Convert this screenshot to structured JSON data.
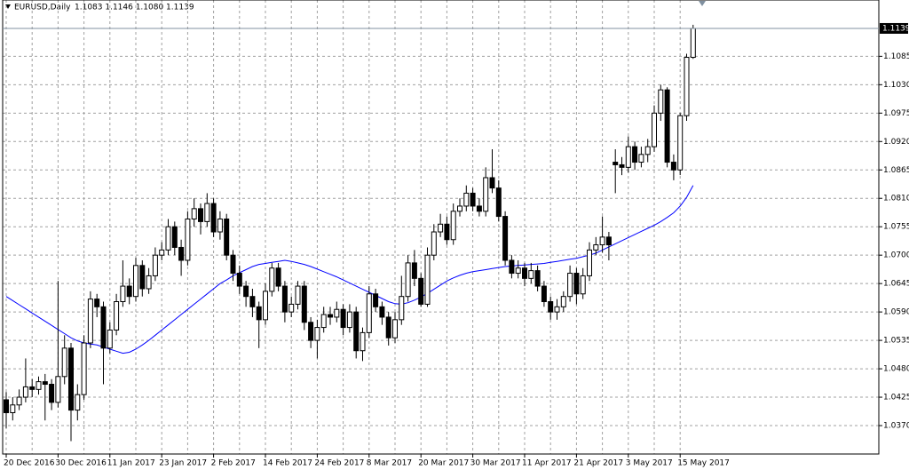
{
  "chart_data": {
    "type": "candlestick",
    "title": "EURUSD,Daily",
    "subtitle": "1.1083 1.1146 1.1080 1.1139",
    "categories": [
      "20 Dec 2016",
      null,
      null,
      null,
      null,
      null,
      null,
      null,
      "30 Dec 2016",
      null,
      null,
      null,
      null,
      null,
      null,
      null,
      "11 Jan 2017",
      null,
      null,
      null,
      null,
      null,
      null,
      null,
      "23 Jan 2017",
      null,
      null,
      null,
      null,
      null,
      null,
      null,
      "2 Feb 2017",
      null,
      null,
      null,
      null,
      null,
      null,
      null,
      "14 Feb 2017",
      null,
      null,
      null,
      null,
      null,
      null,
      null,
      "24 Feb 2017",
      null,
      null,
      null,
      null,
      null,
      null,
      null,
      "8 Mar 2017",
      null,
      null,
      null,
      null,
      null,
      null,
      null,
      "20 Mar 2017",
      null,
      null,
      null,
      null,
      null,
      null,
      null,
      "30 Mar 2017",
      null,
      null,
      null,
      null,
      null,
      null,
      null,
      "11 Apr 2017",
      null,
      null,
      null,
      null,
      null,
      null,
      null,
      "21 Apr 2017",
      null,
      null,
      null,
      null,
      null,
      null,
      null,
      "3 May 2017",
      null,
      null,
      null,
      null,
      null,
      null,
      null,
      "15 May 2017",
      null,
      null
    ],
    "open": [
      1.042,
      1.0395,
      1.041,
      1.0425,
      1.0445,
      1.044,
      1.0455,
      1.045,
      1.0415,
      1.0465,
      1.052,
      1.04,
      1.043,
      1.053,
      1.0615,
      1.06,
      1.052,
      1.0555,
      1.061,
      1.064,
      1.062,
      1.068,
      1.0635,
      1.066,
      1.07,
      1.071,
      1.0755,
      1.0715,
      1.069,
      1.077,
      1.079,
      1.0765,
      1.08,
      1.0745,
      1.077,
      1.07,
      1.0665,
      1.064,
      1.062,
      1.06,
      1.0575,
      1.063,
      1.0675,
      1.064,
      1.059,
      1.0605,
      1.064,
      1.057,
      1.0535,
      1.056,
      1.0585,
      1.058,
      1.0595,
      1.056,
      1.059,
      1.0515,
      1.055,
      1.0625,
      1.06,
      1.058,
      1.054,
      1.0575,
      1.062,
      1.0685,
      1.0655,
      1.0605,
      1.07,
      1.0745,
      1.076,
      1.073,
      1.0785,
      1.0795,
      1.082,
      1.0795,
      1.0785,
      1.085,
      1.083,
      1.0775,
      1.069,
      1.0665,
      1.0675,
      1.0655,
      1.067,
      1.064,
      1.061,
      1.059,
      1.06,
      1.062,
      1.0665,
      1.0625,
      1.066,
      1.071,
      1.072,
      1.0735,
      1.088,
      1.0875,
      1.087,
      1.091,
      1.088,
      1.0895,
      1.091,
      1.0975,
      1.102,
      1.088,
      1.0865,
      1.097,
      1.1083
    ],
    "high": [
      1.0435,
      1.0425,
      1.044,
      1.05,
      1.046,
      1.0465,
      1.047,
      1.046,
      1.065,
      1.0545,
      1.053,
      1.045,
      1.0545,
      1.063,
      1.0625,
      1.061,
      1.057,
      1.0625,
      1.069,
      1.0655,
      1.0695,
      1.069,
      1.0675,
      1.0715,
      1.0725,
      1.077,
      1.0765,
      1.073,
      1.0785,
      1.081,
      1.08,
      1.082,
      1.081,
      1.0785,
      1.078,
      1.071,
      1.068,
      1.065,
      1.0635,
      1.061,
      1.0645,
      1.0685,
      1.0685,
      1.065,
      1.062,
      1.065,
      1.065,
      1.058,
      1.0575,
      1.06,
      1.06,
      1.061,
      1.0605,
      1.0605,
      1.06,
      1.056,
      1.064,
      1.0635,
      1.061,
      1.059,
      1.059,
      1.066,
      1.07,
      1.071,
      1.0665,
      1.0715,
      1.076,
      1.078,
      1.0775,
      1.08,
      1.081,
      1.0835,
      1.083,
      1.081,
      1.087,
      1.0905,
      1.0845,
      1.0785,
      1.07,
      1.069,
      1.0685,
      1.0685,
      1.068,
      1.065,
      1.062,
      1.0615,
      1.063,
      1.068,
      1.0675,
      1.0675,
      1.0725,
      1.0735,
      1.0775,
      1.0745,
      1.0905,
      1.089,
      1.093,
      1.092,
      1.091,
      1.0925,
      1.099,
      1.103,
      1.1025,
      1.0895,
      1.0975,
      1.109,
      1.1146
    ],
    "low": [
      1.0365,
      1.038,
      1.04,
      1.0415,
      1.0425,
      1.043,
      1.038,
      1.04,
      1.0405,
      1.045,
      1.034,
      1.038,
      1.042,
      1.052,
      1.058,
      1.045,
      1.051,
      1.0545,
      1.06,
      1.0605,
      1.061,
      1.062,
      1.0625,
      1.065,
      1.069,
      1.07,
      1.07,
      1.066,
      1.068,
      1.0755,
      1.074,
      1.0755,
      1.0735,
      1.073,
      1.069,
      1.065,
      1.0625,
      1.06,
      1.058,
      1.052,
      1.0565,
      1.062,
      1.063,
      1.057,
      1.058,
      1.0595,
      1.0555,
      1.052,
      1.05,
      1.055,
      1.0565,
      1.057,
      1.0545,
      1.055,
      1.05,
      1.0495,
      1.054,
      1.059,
      1.0565,
      1.0525,
      1.053,
      1.0565,
      1.061,
      1.064,
      1.06,
      1.06,
      1.069,
      1.0735,
      1.072,
      1.072,
      1.0775,
      1.0785,
      1.0785,
      1.0775,
      1.0775,
      1.082,
      1.0765,
      1.068,
      1.0655,
      1.0655,
      1.064,
      1.0645,
      1.063,
      1.06,
      1.0575,
      1.0575,
      1.059,
      1.061,
      1.0605,
      1.0615,
      1.065,
      1.07,
      1.0705,
      1.069,
      1.082,
      1.0855,
      1.086,
      1.0865,
      1.087,
      1.088,
      1.09,
      1.096,
      1.087,
      1.0845,
      1.0855,
      1.096,
      1.108
    ],
    "close": [
      1.0395,
      1.041,
      1.0425,
      1.0445,
      1.044,
      1.0455,
      1.045,
      1.0415,
      1.0465,
      1.052,
      1.04,
      1.043,
      1.053,
      1.0615,
      1.06,
      1.052,
      1.0555,
      1.061,
      1.064,
      1.062,
      1.068,
      1.0635,
      1.066,
      1.07,
      1.071,
      1.0755,
      1.0715,
      1.069,
      1.077,
      1.079,
      1.0765,
      1.08,
      1.0745,
      1.077,
      1.07,
      1.0665,
      1.064,
      1.062,
      1.06,
      1.0575,
      1.063,
      1.0675,
      1.064,
      1.059,
      1.0605,
      1.064,
      1.057,
      1.0535,
      1.056,
      1.0585,
      1.058,
      1.0595,
      1.056,
      1.059,
      1.0515,
      1.055,
      1.0625,
      1.06,
      1.058,
      1.054,
      1.0575,
      1.062,
      1.0685,
      1.0655,
      1.0605,
      1.07,
      1.0745,
      1.076,
      1.073,
      1.0785,
      1.0795,
      1.082,
      1.0795,
      1.0785,
      1.085,
      1.083,
      1.0775,
      1.069,
      1.0665,
      1.0675,
      1.0655,
      1.067,
      1.064,
      1.061,
      1.059,
      1.06,
      1.062,
      1.0665,
      1.0625,
      1.066,
      1.071,
      1.072,
      1.0735,
      1.072,
      1.0875,
      1.087,
      1.091,
      1.088,
      1.0895,
      1.091,
      1.0975,
      1.102,
      1.088,
      1.0865,
      1.097,
      1.1083,
      1.1139
    ],
    "ma": {
      "color": "#0000ff",
      "values": [
        1.062,
        1.0612,
        1.0604,
        1.0596,
        1.0588,
        1.058,
        1.0572,
        1.0564,
        1.0556,
        1.0548,
        1.054,
        1.0534,
        1.053,
        1.0528,
        1.0526,
        1.0522,
        1.0518,
        1.0514,
        1.051,
        1.0512,
        1.0518,
        1.0526,
        1.0535,
        1.0545,
        1.0555,
        1.0565,
        1.0575,
        1.0585,
        1.0595,
        1.0605,
        1.0615,
        1.0625,
        1.0635,
        1.0645,
        1.0652,
        1.066,
        1.0666,
        1.0672,
        1.0678,
        1.0682,
        1.0684,
        1.0686,
        1.0688,
        1.069,
        1.0688,
        1.0685,
        1.0682,
        1.0678,
        1.0673,
        1.0668,
        1.0663,
        1.0658,
        1.0652,
        1.0646,
        1.064,
        1.0634,
        1.0628,
        1.0622,
        1.0616,
        1.061,
        1.0606,
        1.0605,
        1.0608,
        1.0613,
        1.0619,
        1.0626,
        1.0634,
        1.0642,
        1.065,
        1.0656,
        1.0661,
        1.0665,
        1.0668,
        1.067,
        1.0672,
        1.0674,
        1.0676,
        1.0678,
        1.0679,
        1.068,
        1.0681,
        1.0682,
        1.0683,
        1.0684,
        1.0686,
        1.0688,
        1.069,
        1.0692,
        1.0694,
        1.0697,
        1.07,
        1.0704,
        1.071,
        1.0716,
        1.0722,
        1.0728,
        1.0734,
        1.074,
        1.0746,
        1.0752,
        1.0758,
        1.0765,
        1.0773,
        1.0782,
        1.0795,
        1.0812,
        1.0835
      ]
    },
    "up_color": "#ffffff",
    "down_color": "#000000",
    "ylim": [
      1.0315,
      1.1194
    ],
    "yticks": [
      {
        "value": 1.037,
        "label": "1.0370"
      },
      1.0425,
      {
        "value": 1.048,
        "label": "1.0480"
      },
      1.0535,
      {
        "value": 1.059,
        "label": "1.0590"
      },
      1.0645,
      {
        "value": 1.07,
        "label": "1.0700"
      },
      1.0755,
      {
        "value": 1.081,
        "label": "1.0810"
      },
      1.0865,
      {
        "value": 1.092,
        "label": "1.0920"
      },
      1.0975,
      {
        "value": 1.103,
        "label": "1.1030"
      },
      1.1085
    ],
    "last_price": 1.1139,
    "grid": true
  }
}
